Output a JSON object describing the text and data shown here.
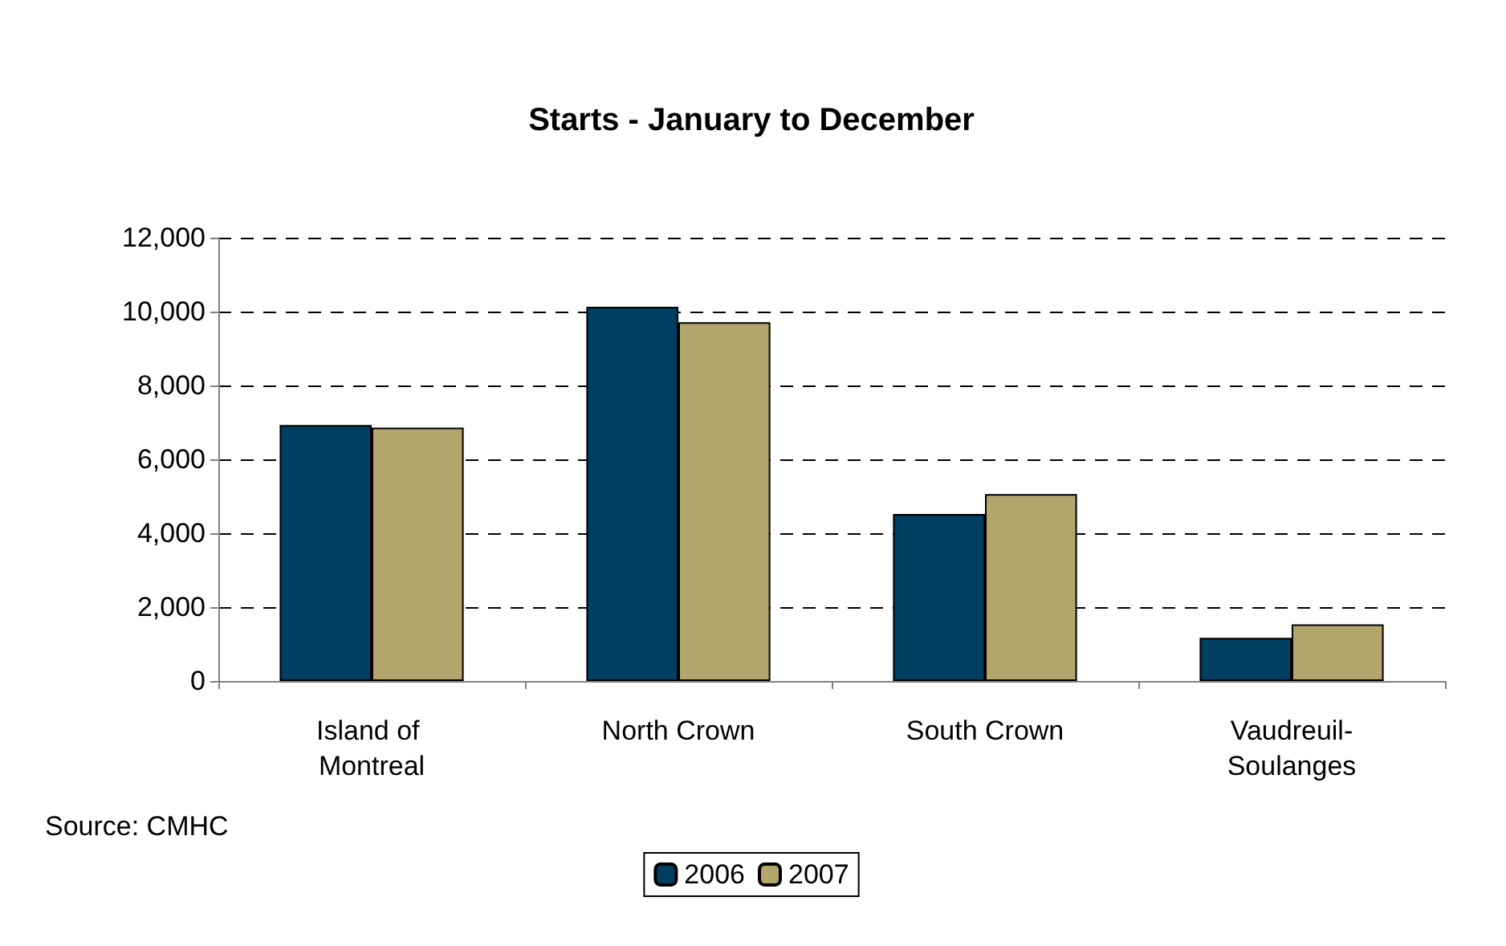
{
  "chart_data": {
    "type": "bar",
    "title": "Starts - January to December",
    "categories": [
      "Island of Montreal",
      "North Crown",
      "South Crown",
      "Vaudreuil-Soulanges"
    ],
    "series": [
      {
        "name": "2006",
        "color": "#003f62",
        "values": [
          6930,
          10130,
          4520,
          1170
        ]
      },
      {
        "name": "2007",
        "color": "#b3a66d",
        "values": [
          6860,
          9710,
          5060,
          1530
        ]
      }
    ],
    "ylim": [
      0,
      12000
    ],
    "yticks": [
      0,
      {
        "value": 2000,
        "label": "2,000"
      },
      {
        "value": 4000,
        "label": "4,000"
      },
      {
        "value": 6000,
        "label": "6,000"
      },
      {
        "value": 8000,
        "label": "8,000"
      },
      {
        "value": 10000,
        "label": "10,000"
      },
      {
        "value": 12000,
        "label": "12,000"
      }
    ],
    "grid": "y",
    "legend": "bottom",
    "annotations": [
      "Source: CMHC"
    ]
  }
}
